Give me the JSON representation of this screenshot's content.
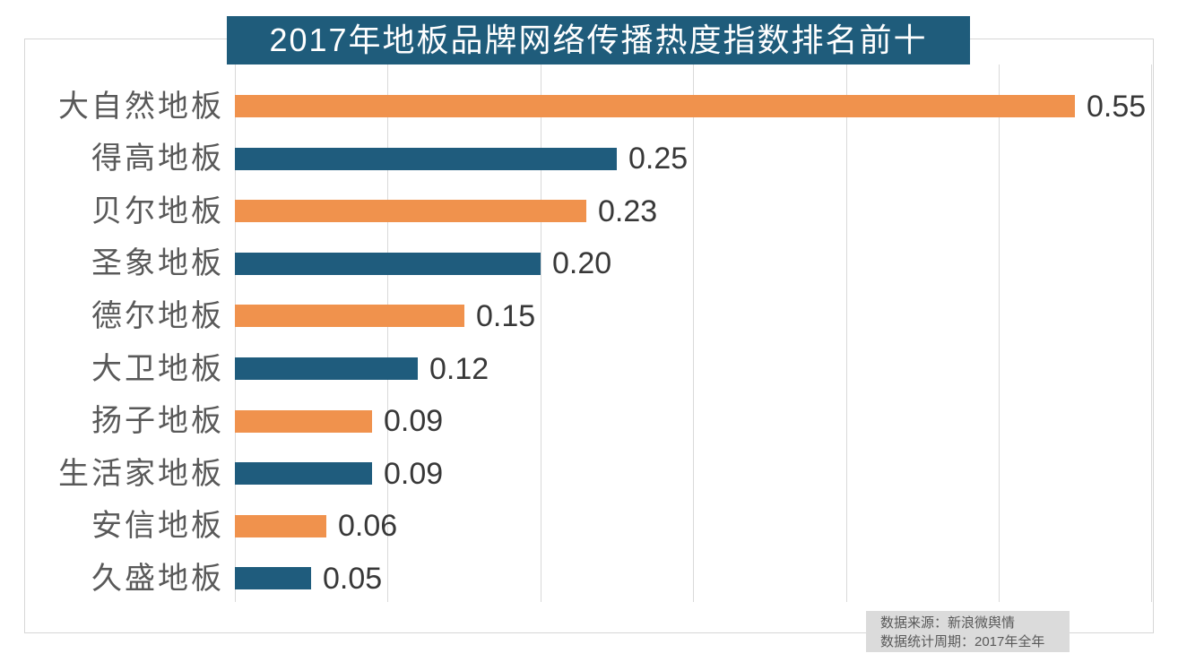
{
  "chart_data": {
    "type": "bar",
    "orientation": "horizontal",
    "title": "2017年地板品牌网络传播热度指数排名前十",
    "categories": [
      "大自然地板",
      "得高地板",
      "贝尔地板",
      "圣象地板",
      "德尔地板",
      "大卫地板",
      "扬子地板",
      "生活家地板",
      "安信地板",
      "久盛地板"
    ],
    "values": [
      0.55,
      0.25,
      0.23,
      0.2,
      0.15,
      0.12,
      0.09,
      0.09,
      0.06,
      0.05
    ],
    "value_labels": [
      "0.55",
      "0.25",
      "0.23",
      "0.20",
      "0.15",
      "0.12",
      "0.09",
      "0.09",
      "0.06",
      "0.05"
    ],
    "xlabel": "",
    "ylabel": "",
    "xlim": [
      0,
      0.6
    ],
    "grid_step": 0.1,
    "grid_on": true,
    "legend": null,
    "colors": {
      "bar_odd": "#F0924D",
      "bar_even": "#1F5C7D",
      "title_bg": "#1F5C7B",
      "title_text": "#ffffff",
      "label_text": "#595959",
      "value_text": "#383838",
      "gridline": "#d9d9d9",
      "source_bg": "#dbdbdb"
    }
  },
  "source": {
    "line1": "数据来源：新浪微舆情",
    "line2": "数据统计周期：2017年全年"
  }
}
